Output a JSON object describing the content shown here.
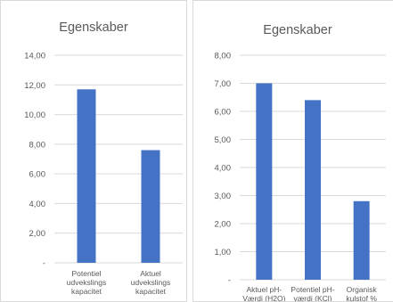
{
  "chart_data": [
    {
      "type": "bar",
      "title": "Egenskaber",
      "categories": [
        [
          "Potentiel",
          "udvekslings",
          "kapacitet"
        ],
        [
          "Aktuel",
          "udvekslings",
          "kapacitet"
        ]
      ],
      "values": [
        11.7,
        7.6
      ],
      "yticks": [
        "-",
        "2,00",
        "4,00",
        "6,00",
        "8,00",
        "10,00",
        "12,00",
        "14,00"
      ],
      "ylim": [
        0,
        14
      ],
      "grid": true,
      "bar_color": "#4472c4"
    },
    {
      "type": "bar",
      "title": "Egenskaber",
      "categories": [
        [
          "Aktuel pH-",
          "Værdi (H2O)"
        ],
        [
          "Potentiel pH-",
          "værdi (KCl)"
        ],
        [
          "Organisk",
          "kulstof %"
        ]
      ],
      "values": [
        7.0,
        6.4,
        2.8
      ],
      "yticks": [
        "-",
        "1,00",
        "2,00",
        "3,00",
        "4,00",
        "5,00",
        "6,00",
        "7,00",
        "8,00"
      ],
      "ylim": [
        0,
        8
      ],
      "grid": true,
      "bar_color": "#4472c4"
    }
  ]
}
